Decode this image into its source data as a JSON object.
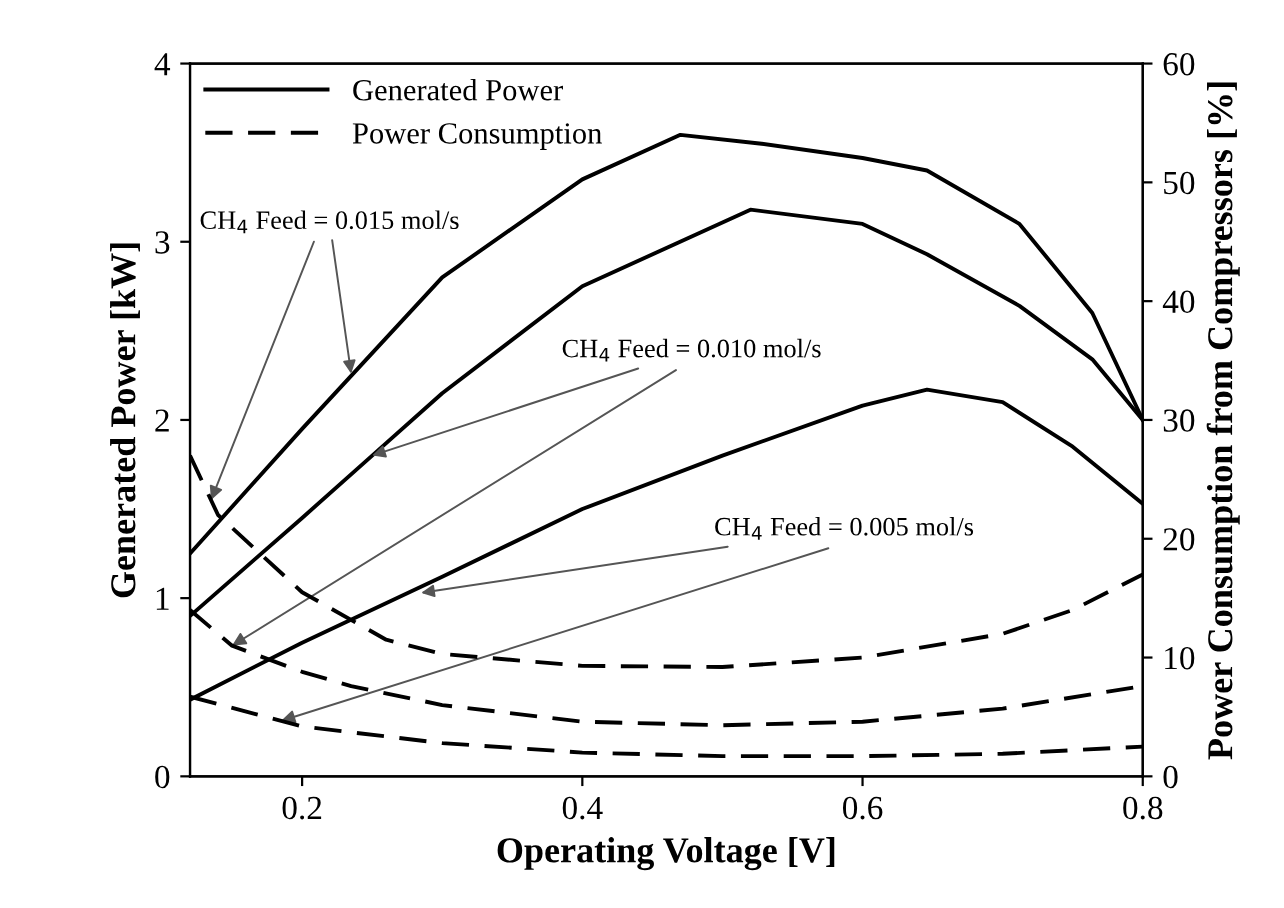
{
  "chart_data": {
    "type": "line",
    "xlabel": "Operating Voltage [V]",
    "ylabel": "Generated Power [kW]",
    "y2label": "Power Consumption from Compressors [%]",
    "xlim": [
      0.12,
      0.8
    ],
    "xticks": [
      0.2,
      0.4,
      0.6,
      0.8
    ],
    "ylim": [
      0,
      4
    ],
    "yticks": [
      0,
      1,
      2,
      3,
      4
    ],
    "y2lim": [
      0,
      60
    ],
    "y2ticks": [
      0,
      10,
      20,
      30,
      40,
      50,
      60
    ],
    "grid": false,
    "legend": "top left",
    "marker": "none",
    "series": [
      {
        "name": "Generated Power",
        "color": "#000000",
        "line_style": "solid",
        "x": [
          0.12,
          0.2,
          0.3,
          0.4,
          0.47,
          0.528,
          0.6,
          0.646,
          0.712,
          0.764,
          0.8
        ],
        "values": [
          1.25,
          1.95,
          2.8,
          3.35,
          3.6,
          3.55,
          3.47,
          3.4,
          3.1,
          2.6,
          2.0
        ]
      },
      {
        "color": "#000000",
        "line_style": "solid",
        "x": [
          0.12,
          0.2,
          0.25,
          0.3,
          0.4,
          0.52,
          0.6,
          0.646,
          0.712,
          0.764,
          0.8
        ],
        "values": [
          0.9,
          1.45,
          1.8,
          2.15,
          2.75,
          3.18,
          3.1,
          2.93,
          2.64,
          2.34,
          2.0
        ]
      },
      {
        "color": "#000000",
        "line_style": "solid",
        "x": [
          0.12,
          0.2,
          0.3,
          0.4,
          0.5,
          0.6,
          0.646,
          0.7,
          0.75,
          0.8
        ],
        "values": [
          0.43,
          0.75,
          1.12,
          1.5,
          1.8,
          2.08,
          2.17,
          2.1,
          1.85,
          1.53
        ]
      },
      {
        "name": "Power Consumption",
        "color": "#000000",
        "line_style": "dashed",
        "axis": "y2",
        "x": [
          0.12,
          0.14,
          0.2,
          0.26,
          0.3,
          0.4,
          0.5,
          0.6,
          0.7,
          0.75,
          0.8
        ],
        "values": [
          27,
          22,
          15.5,
          11.5,
          10.3,
          9.3,
          9.2,
          10,
          12,
          14,
          17
        ]
      },
      {
        "color": "#000000",
        "line_style": "dashed",
        "axis": "y2",
        "x": [
          0.12,
          0.15,
          0.2,
          0.235,
          0.3,
          0.4,
          0.5,
          0.6,
          0.7,
          0.8
        ],
        "values": [
          14,
          11,
          8.8,
          7.6,
          6,
          4.6,
          4.3,
          4.6,
          5.7,
          7.6
        ]
      },
      {
        "color": "#000000",
        "line_style": "dashed",
        "axis": "y2",
        "x": [
          0.12,
          0.2,
          0.3,
          0.4,
          0.5,
          0.6,
          0.7,
          0.8
        ],
        "values": [
          6.7,
          4.2,
          2.8,
          2.0,
          1.7,
          1.7,
          1.9,
          2.5
        ]
      }
    ],
    "annotations": [
      {
        "text": "CH$_{4}$ Feed = 0.015 mol/s",
        "x": 0.235,
        "y": 2.26
      },
      {
        "text": "CH$_{4}$ Feed = 0.010 mol/s",
        "x": 0.25,
        "y": 1.8
      },
      {
        "text": "CH$_{4}$ Feed = 0.005 mol/s",
        "x": 0.285,
        "y": 1.03
      }
    ]
  }
}
